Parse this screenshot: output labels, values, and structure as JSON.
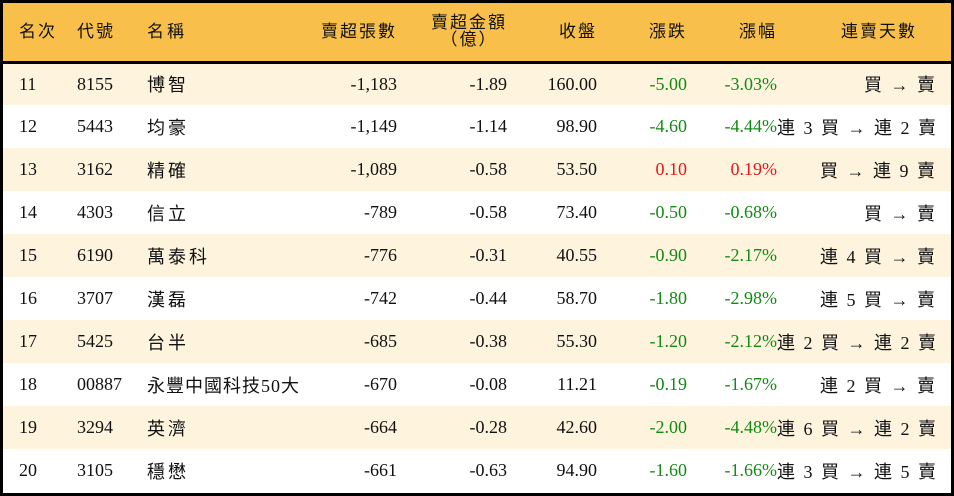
{
  "table": {
    "headers": {
      "rank": "名次",
      "code": "代號",
      "name": "名稱",
      "volume": "賣超張數",
      "amount_line1": "賣超金額",
      "amount_line2": "（億）",
      "close": "收盤",
      "change": "漲跌",
      "change_pct": "漲幅",
      "streak": "連賣天數"
    },
    "colors": {
      "header_bg": "#F8C04B",
      "row_odd_bg": "#FEF4DE",
      "row_even_bg": "#FFFFFF",
      "down": "#138A13",
      "up": "#E8161A"
    },
    "rows": [
      {
        "rank": "11",
        "code": "8155",
        "name": "博智",
        "volume": "-1,183",
        "amount": "-1.89",
        "close": "160.00",
        "change": "-5.00",
        "change_pct": "-3.03%",
        "direction": "down",
        "streak": "買 → 賣"
      },
      {
        "rank": "12",
        "code": "5443",
        "name": "均豪",
        "volume": "-1,149",
        "amount": "-1.14",
        "close": "98.90",
        "change": "-4.60",
        "change_pct": "-4.44%",
        "direction": "down",
        "streak": "連 3 買 → 連 2 賣"
      },
      {
        "rank": "13",
        "code": "3162",
        "name": "精確",
        "volume": "-1,089",
        "amount": "-0.58",
        "close": "53.50",
        "change": "0.10",
        "change_pct": "0.19%",
        "direction": "up",
        "streak": "買 → 連 9 賣"
      },
      {
        "rank": "14",
        "code": "4303",
        "name": "信立",
        "volume": "-789",
        "amount": "-0.58",
        "close": "73.40",
        "change": "-0.50",
        "change_pct": "-0.68%",
        "direction": "down",
        "streak": "買 → 賣"
      },
      {
        "rank": "15",
        "code": "6190",
        "name": "萬泰科",
        "volume": "-776",
        "amount": "-0.31",
        "close": "40.55",
        "change": "-0.90",
        "change_pct": "-2.17%",
        "direction": "down",
        "streak": "連 4 買 → 賣"
      },
      {
        "rank": "16",
        "code": "3707",
        "name": "漢磊",
        "volume": "-742",
        "amount": "-0.44",
        "close": "58.70",
        "change": "-1.80",
        "change_pct": "-2.98%",
        "direction": "down",
        "streak": "連 5 買 → 賣"
      },
      {
        "rank": "17",
        "code": "5425",
        "name": "台半",
        "volume": "-685",
        "amount": "-0.38",
        "close": "55.30",
        "change": "-1.20",
        "change_pct": "-2.12%",
        "direction": "down",
        "streak": "連 2 買 → 連 2 賣"
      },
      {
        "rank": "18",
        "code": "00887",
        "name": "永豐中國科技50大",
        "volume": "-670",
        "amount": "-0.08",
        "close": "11.21",
        "change": "-0.19",
        "change_pct": "-1.67%",
        "direction": "down",
        "streak": "連 2 買 → 賣"
      },
      {
        "rank": "19",
        "code": "3294",
        "name": "英濟",
        "volume": "-664",
        "amount": "-0.28",
        "close": "42.60",
        "change": "-2.00",
        "change_pct": "-4.48%",
        "direction": "down",
        "streak": "連 6 買 → 連 2 賣"
      },
      {
        "rank": "20",
        "code": "3105",
        "name": "穩懋",
        "volume": "-661",
        "amount": "-0.63",
        "close": "94.90",
        "change": "-1.60",
        "change_pct": "-1.66%",
        "direction": "down",
        "streak": "連 3 買 → 連 5 賣"
      }
    ]
  }
}
